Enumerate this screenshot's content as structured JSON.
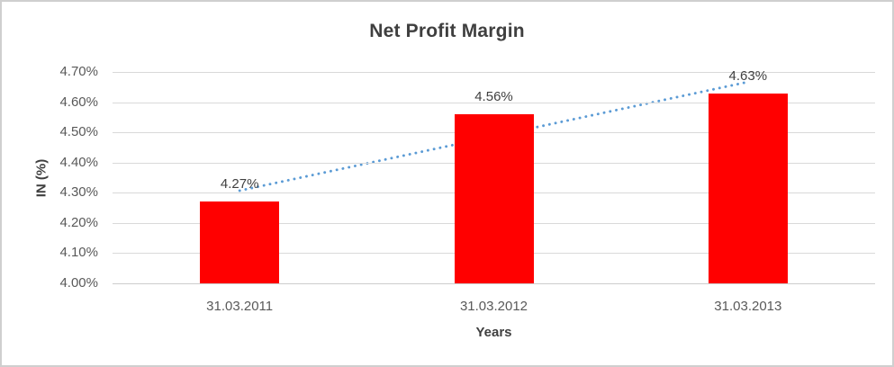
{
  "chart_data": {
    "type": "bar",
    "title": "Net Profit Margin",
    "categories": [
      "31.03.2011",
      "31.03.2012",
      "31.03.2013"
    ],
    "values": [
      4.27,
      4.56,
      4.63
    ],
    "data_labels": [
      "4.27%",
      "4.56%",
      "4.63%"
    ],
    "xlabel": "Years",
    "ylabel": "IN (%)",
    "ylim": [
      4.0,
      4.7
    ],
    "ytick_step": 0.1,
    "ytick_labels": [
      "4.00%",
      "4.10%",
      "4.20%",
      "4.30%",
      "4.40%",
      "4.50%",
      "4.60%",
      "4.70%"
    ],
    "grid": true,
    "legend": "none",
    "bar_color": "#FF0000",
    "gridline_color": "#D9D9D9",
    "trendline": {
      "type": "linear",
      "style": "dotted",
      "color": "#5B9BD5",
      "start_value": 4.307,
      "end_value": 4.667
    }
  }
}
